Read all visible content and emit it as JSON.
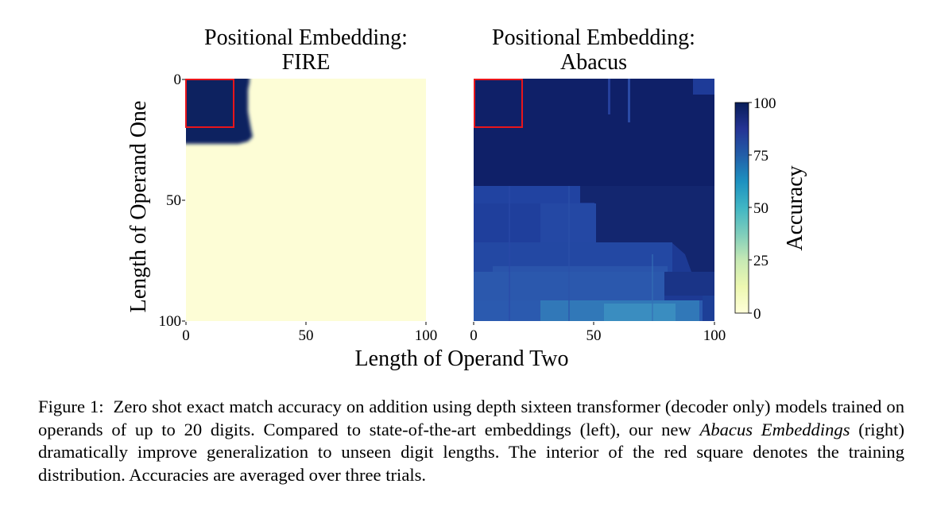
{
  "chart_data": [
    {
      "type": "heatmap",
      "title_line1": "Positional Embedding:",
      "title_line2": "FIRE",
      "xlabel": "Length of Operand Two",
      "ylabel": "Length of Operand One",
      "xlim": [
        0,
        100
      ],
      "ylim": [
        0,
        100
      ],
      "y_axis_inverted": true,
      "xticks": [
        "0",
        "50",
        "100"
      ],
      "yticks": [
        "0",
        "50",
        "100"
      ],
      "training_region": {
        "x": [
          0,
          20
        ],
        "y": [
          0,
          20
        ],
        "color": "#e8151b"
      },
      "description_of_values": "accuracy ~100 where operand one length < ~25 and operand two length < ~27; ~0 elsewhere"
    },
    {
      "type": "heatmap",
      "title_line1": "Positional Embedding:",
      "title_line2": "Abacus",
      "xlabel": "Length of Operand Two",
      "xlim": [
        0,
        100
      ],
      "ylim": [
        0,
        100
      ],
      "y_axis_inverted": true,
      "xticks": [
        "0",
        "50",
        "100"
      ],
      "training_region": {
        "x": [
          0,
          20
        ],
        "y": [
          0,
          20
        ],
        "color": "#e8151b"
      },
      "description_of_values": "accuracy ~100 for operand one length < ~45; ~90 mid-range; ~80 toward bottom rows; lowest ~70 near operand one 90-100, operand two 30-90"
    }
  ],
  "colorbar": {
    "label": "Accuracy",
    "range": [
      0,
      100
    ],
    "ticks": [
      "0",
      "25",
      "50",
      "75",
      "100"
    ],
    "colors": [
      "#ffffd9",
      "#edf8b1",
      "#c7e9b4",
      "#7fcdbb",
      "#41b6c4",
      "#1d91c0",
      "#225ea8",
      "#253494",
      "#081d58"
    ]
  },
  "caption": {
    "label": "Figure 1:",
    "text_before": "Zero shot exact match accuracy on addition using depth sixteen transformer (decoder only) models trained on operands of up to 20 digits. Compared to state-of-the-art embeddings (left), our new",
    "emphasis": "Abacus Embeddings",
    "text_after": "(right) dramatically improve generalization to unseen digit lengths. The interior of the red square denotes the training distribution. Accuracies are averaged over three trials."
  }
}
